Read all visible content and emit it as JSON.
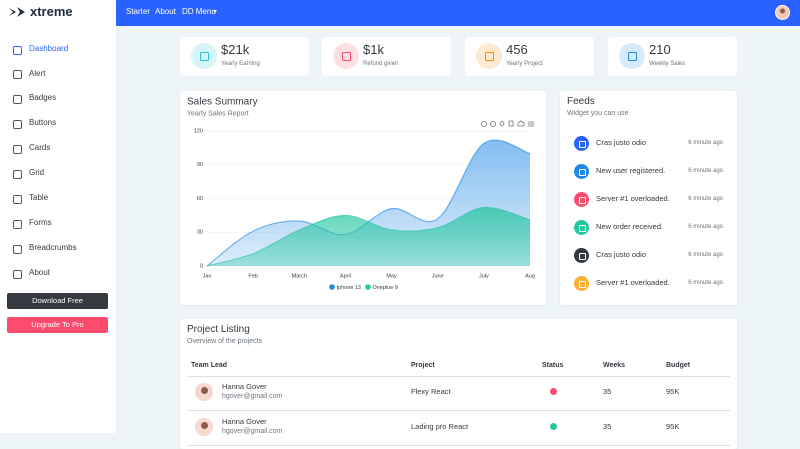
{
  "brand": "xtreme",
  "nav": [
    "Starter",
    "About",
    "DD Menu"
  ],
  "sidebar": {
    "items": [
      "Dashboard",
      "Alert",
      "Badges",
      "Buttons",
      "Cards",
      "Grid",
      "Table",
      "Forms",
      "Breadcrumbs",
      "About"
    ],
    "buttons": [
      "Download Free",
      "Upgrade To Pro"
    ]
  },
  "stats": [
    {
      "value": "$21k",
      "label": "Yearly Earning",
      "color": "#21c1d6"
    },
    {
      "value": "$1k",
      "label": "Refund given",
      "color": "#fc4b6c"
    },
    {
      "value": "456",
      "label": "Yearly Project",
      "color": "#fb8c00"
    },
    {
      "value": "210",
      "label": "Weekly Sales",
      "color": "#1e88e5"
    }
  ],
  "chart_data": {
    "type": "area",
    "title": "Sales Summary",
    "subtitle": "Yearly Sales Report",
    "categories": [
      "Jan",
      "Feb",
      "March",
      "April",
      "May",
      "June",
      "July",
      "Aug"
    ],
    "series": [
      {
        "name": "Iphone 13",
        "color": "#1e88e5",
        "values": [
          0,
          31,
          40,
          28,
          51,
          42,
          109,
          100
        ]
      },
      {
        "name": "Oneplue 9",
        "color": "#26c6a0",
        "values": [
          0,
          11,
          32,
          45,
          32,
          34,
          52,
          41
        ]
      }
    ],
    "ylim": [
      0,
      120
    ],
    "yticks": [
      0,
      30,
      60,
      90,
      120
    ],
    "grid": true
  },
  "feeds": {
    "title": "Feeds",
    "subtitle": "Widget you can use",
    "items": [
      {
        "text": "Cras justo odio",
        "time": "6 minute ago",
        "color": "#2962ff"
      },
      {
        "text": "New user registered.",
        "time": "6 minute ago",
        "color": "#1e88e5"
      },
      {
        "text": "Server #1 overloaded.",
        "time": "6 minute ago",
        "color": "#fc4b6c"
      },
      {
        "text": "New order received.",
        "time": "6 minute ago",
        "color": "#26c6a0"
      },
      {
        "text": "Cras justo odio",
        "time": "6 minute ago",
        "color": "#343a40"
      },
      {
        "text": "Server #1 overloaded.",
        "time": "6 minute ago",
        "color": "#fbb034"
      }
    ]
  },
  "projects": {
    "title": "Project Listing",
    "subtitle": "Overview of the projects",
    "columns": [
      "Team Lead",
      "Project",
      "Status",
      "Weeks",
      "Budget"
    ],
    "rows": [
      {
        "name": "Hanna Gover",
        "email": "hgover@gmail.com",
        "project": "Flexy React",
        "status_color": "#fc4b6c",
        "weeks": 35,
        "budget": "95K"
      },
      {
        "name": "Hanna Gover",
        "email": "hgover@gmail.com",
        "project": "Lading pro React",
        "status_color": "#26c6a0",
        "weeks": 35,
        "budget": "95K"
      }
    ]
  }
}
